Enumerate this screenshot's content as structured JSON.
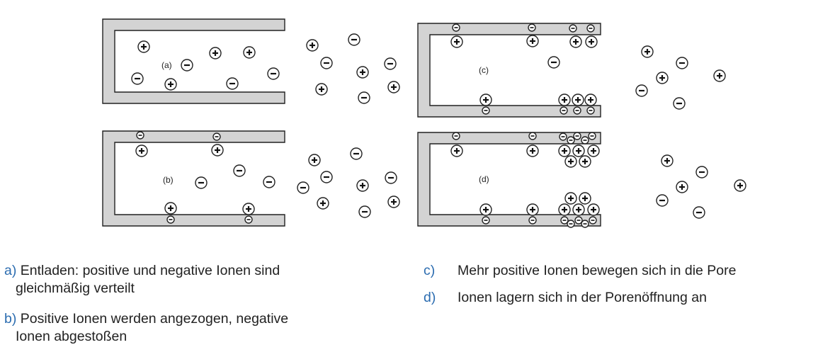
{
  "panels": [
    {
      "id": "a",
      "label": "(a)"
    },
    {
      "id": "b",
      "label": "(b)"
    },
    {
      "id": "c",
      "label": "(c)"
    },
    {
      "id": "d",
      "label": "(d)"
    }
  ],
  "captions": {
    "a": {
      "key": "a)",
      "line1": "Entladen: positive und negative Ionen sind",
      "line2": "gleichmäßig verteilt"
    },
    "b": {
      "key": "b)",
      "line1": "Positive Ionen werden angezogen, negative",
      "line2": "Ionen abgestoßen"
    },
    "c": {
      "key": "c)",
      "line1": "Mehr positive Ionen bewegen sich in die Pore"
    },
    "d": {
      "key": "d)",
      "line1": "Ionen lagern sich in der Porenöffnung an"
    }
  },
  "colors": {
    "wall_fill": "#d3d3d3",
    "caption_key": "#2b6cb0"
  }
}
